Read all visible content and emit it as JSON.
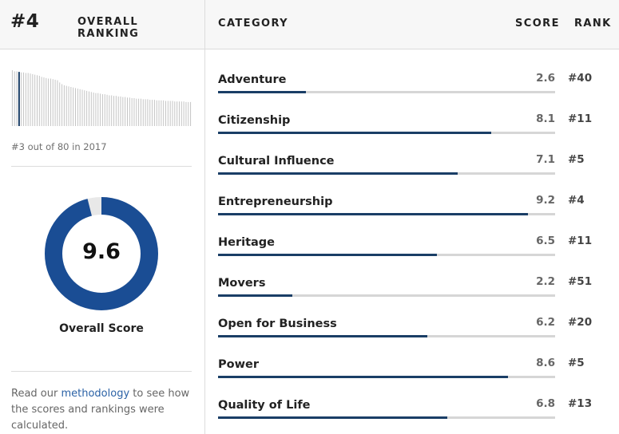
{
  "overall": {
    "rank": "#4",
    "title": "OVERALL RANKING",
    "previous_caption": "#3 out of 80 in 2017",
    "score": "9.6",
    "score_fraction": 0.96,
    "score_label": "Overall Score"
  },
  "methodology": {
    "prefix": "Read our ",
    "link": "methodology",
    "suffix": " to see how the scores and rankings were calculated."
  },
  "table": {
    "headers": {
      "category": "CATEGORY",
      "score": "SCORE",
      "rank": "RANK"
    },
    "rows": [
      {
        "category": "Adventure",
        "score": "2.6",
        "rank": "#40",
        "value": 2.6
      },
      {
        "category": "Citizenship",
        "score": "8.1",
        "rank": "#11",
        "value": 8.1
      },
      {
        "category": "Cultural Influence",
        "score": "7.1",
        "rank": "#5",
        "value": 7.1
      },
      {
        "category": "Entrepreneurship",
        "score": "9.2",
        "rank": "#4",
        "value": 9.2
      },
      {
        "category": "Heritage",
        "score": "6.5",
        "rank": "#11",
        "value": 6.5
      },
      {
        "category": "Movers",
        "score": "2.2",
        "rank": "#51",
        "value": 2.2
      },
      {
        "category": "Open for Business",
        "score": "6.2",
        "rank": "#20",
        "value": 6.2
      },
      {
        "category": "Power",
        "score": "8.6",
        "rank": "#5",
        "value": 8.6
      },
      {
        "category": "Quality of Life",
        "score": "6.8",
        "rank": "#13",
        "value": 6.8
      }
    ]
  },
  "chart_data": {
    "type": "bar",
    "highlight_index": 3,
    "values": [
      100,
      98,
      98,
      97,
      96,
      96,
      95,
      95,
      94,
      93,
      92,
      91,
      90,
      88,
      87,
      86,
      85,
      85,
      84,
      83,
      82,
      78,
      75,
      73,
      72,
      71,
      70,
      69,
      68,
      67,
      66,
      65,
      64,
      63,
      62,
      61,
      60,
      59,
      59,
      58,
      57,
      57,
      56,
      55,
      55,
      54,
      54,
      53,
      53,
      52,
      52,
      51,
      51,
      50,
      50,
      49,
      49,
      49,
      48,
      48,
      48,
      47,
      47,
      47,
      46,
      46,
      46,
      46,
      45,
      45,
      45,
      45,
      44,
      44,
      44,
      44,
      44,
      43,
      43,
      43
    ]
  },
  "colors": {
    "accent": "#1a4d94",
    "bar_fill": "#1a3e66",
    "track": "#d6d6d6",
    "donut_track": "#e8e8e8",
    "link": "#2b62a6"
  }
}
